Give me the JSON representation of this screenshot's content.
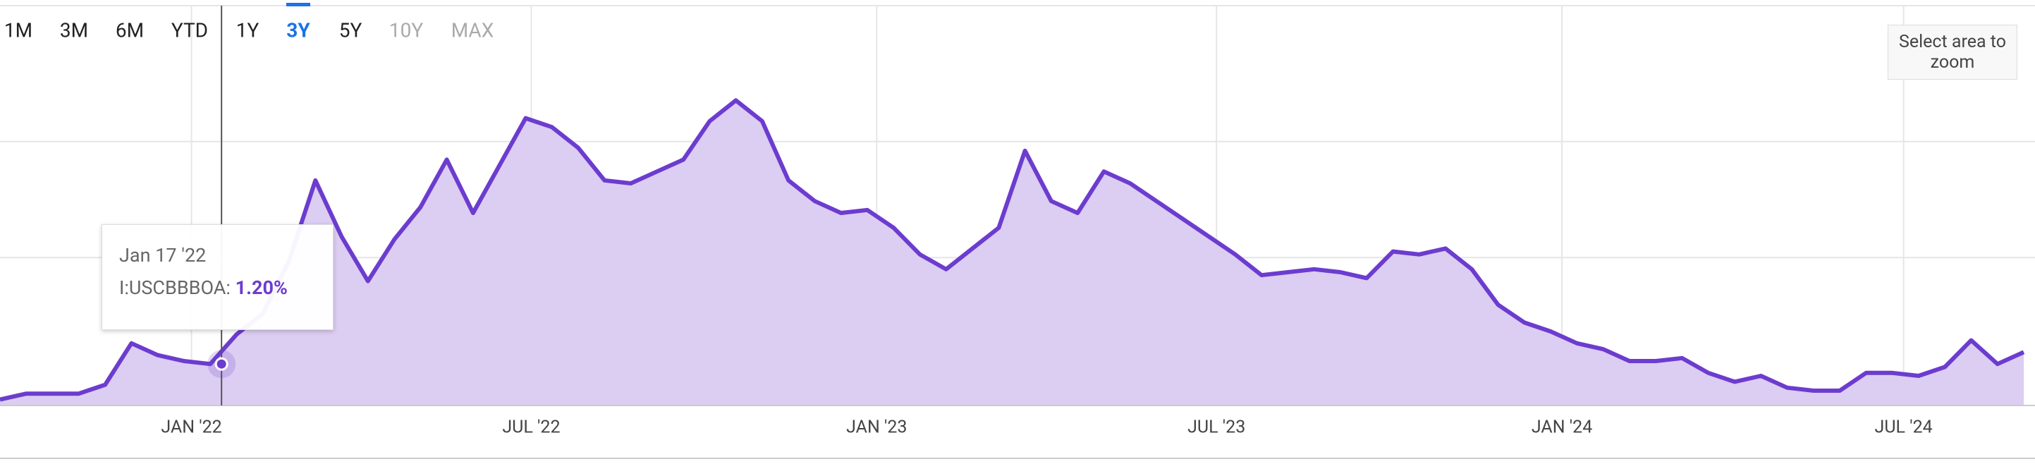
{
  "chart_data": {
    "type": "area",
    "buttons": [
      {
        "label": "1M",
        "state": "active"
      },
      {
        "label": "3M",
        "state": "active"
      },
      {
        "label": "6M",
        "state": "active"
      },
      {
        "label": "YTD",
        "state": "active"
      },
      {
        "label": "1Y",
        "state": "active"
      },
      {
        "label": "3Y",
        "state": "selected"
      },
      {
        "label": "5Y",
        "state": "active"
      },
      {
        "label": "10Y",
        "state": "disabled"
      },
      {
        "label": "MAX",
        "state": "disabled"
      }
    ],
    "zoom_hint": "Select area to zoom",
    "x": [
      "2021-09-21",
      "2021-10-05",
      "2021-10-19",
      "2021-11-02",
      "2021-11-16",
      "2021-11-30",
      "2021-12-14",
      "2021-12-28",
      "2022-01-11",
      "2022-01-25",
      "2022-02-08",
      "2022-02-22",
      "2022-03-08",
      "2022-03-22",
      "2022-04-05",
      "2022-04-19",
      "2022-05-03",
      "2022-05-17",
      "2022-05-31",
      "2022-06-14",
      "2022-06-28",
      "2022-07-12",
      "2022-07-26",
      "2022-08-09",
      "2022-08-23",
      "2022-09-06",
      "2022-09-20",
      "2022-10-04",
      "2022-10-18",
      "2022-11-01",
      "2022-11-15",
      "2022-11-29",
      "2022-12-13",
      "2022-12-27",
      "2023-01-10",
      "2023-01-24",
      "2023-02-07",
      "2023-02-21",
      "2023-03-07",
      "2023-03-21",
      "2023-04-04",
      "2023-04-18",
      "2023-05-02",
      "2023-05-16",
      "2023-05-30",
      "2023-06-13",
      "2023-06-27",
      "2023-07-11",
      "2023-07-25",
      "2023-08-08",
      "2023-08-22",
      "2023-09-05",
      "2023-09-19",
      "2023-10-03",
      "2023-10-17",
      "2023-10-31",
      "2023-11-14",
      "2023-11-28",
      "2023-12-12",
      "2023-12-26",
      "2024-01-09",
      "2024-01-23",
      "2024-02-06",
      "2024-02-20",
      "2024-03-05",
      "2024-03-19",
      "2024-04-02",
      "2024-04-16",
      "2024-04-30",
      "2024-05-14",
      "2024-05-28",
      "2024-06-11",
      "2024-06-25",
      "2024-07-09",
      "2024-07-23",
      "2024-08-06",
      "2024-08-20",
      "2024-09-03"
    ],
    "series": [
      {
        "name": "I:USCBBBOA:",
        "color": "#6c3ccf",
        "fill": "#dccdf2",
        "values": [
          1.08,
          1.1,
          1.1,
          1.1,
          1.13,
          1.27,
          1.23,
          1.21,
          1.2,
          1.3,
          1.37,
          1.55,
          1.82,
          1.63,
          1.48,
          1.62,
          1.73,
          1.89,
          1.71,
          1.87,
          2.03,
          2.0,
          1.93,
          1.82,
          1.81,
          1.85,
          1.89,
          2.02,
          2.09,
          2.02,
          1.82,
          1.75,
          1.71,
          1.72,
          1.66,
          1.57,
          1.52,
          1.59,
          1.66,
          1.92,
          1.75,
          1.71,
          1.85,
          1.81,
          1.75,
          1.69,
          1.63,
          1.57,
          1.5,
          1.51,
          1.52,
          1.51,
          1.49,
          1.58,
          1.57,
          1.59,
          1.52,
          1.4,
          1.34,
          1.31,
          1.27,
          1.25,
          1.21,
          1.21,
          1.22,
          1.17,
          1.14,
          1.16,
          1.12,
          1.11,
          1.11,
          1.17,
          1.17,
          1.16,
          1.19,
          1.28,
          1.2,
          1.24
        ]
      }
    ],
    "xlim": [
      "2021-09-21",
      "2024-09-09"
    ],
    "xticks": [
      {
        "value": "2022-01-01",
        "label": "JAN '22"
      },
      {
        "value": "2022-07-01",
        "label": "JUL '22"
      },
      {
        "value": "2023-01-01",
        "label": "JAN '23"
      },
      {
        "value": "2023-07-01",
        "label": "JUL '23"
      },
      {
        "value": "2024-01-01",
        "label": "JAN '24"
      },
      {
        "value": "2024-07-01",
        "label": "JUL '24"
      }
    ],
    "ylim": [
      1.06,
      2.41
    ],
    "grid": true,
    "tooltip": {
      "x": "2022-01-17",
      "date_label": "Jan 17 '22",
      "value": 1.2,
      "value_label": "1.20%"
    }
  }
}
